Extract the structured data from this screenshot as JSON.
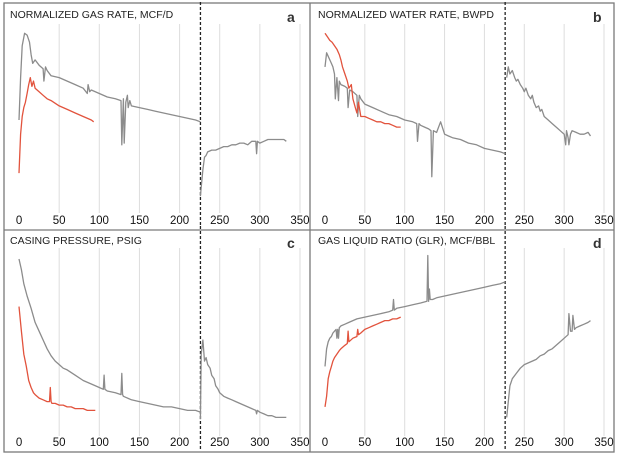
{
  "figure": {
    "panels": [
      {
        "id": "a",
        "title": "NORMALIZED GAS RATE, MCF/D",
        "letter": "a"
      },
      {
        "id": "b",
        "title": "NORMALIZED WATER RATE, BWPD",
        "letter": "b"
      },
      {
        "id": "c",
        "title": "CASING PRESSURE, PSIG",
        "letter": "c"
      },
      {
        "id": "d",
        "title": "GAS LIQUID RATIO (GLR), MCF/BBL",
        "letter": "d"
      }
    ],
    "x_ticks": [
      "0",
      "50",
      "100",
      "150",
      "200",
      "250",
      "300",
      "350"
    ],
    "colors": {
      "gray_series": "#8c8c8c",
      "red_series": "#e2533d",
      "grid": "#dddddd",
      "frame": "#7a7a7a",
      "divider": "#222222"
    }
  },
  "chart_data": [
    {
      "type": "line",
      "panel": "a",
      "title": "NORMALIZED GAS RATE, MCF/D",
      "xlim": [
        -10,
        355
      ],
      "ylim": [
        0,
        1
      ],
      "divider_x": 226,
      "series": [
        {
          "name": "gray",
          "color": "#8c8c8c",
          "x": [
            0,
            2,
            4,
            7,
            10,
            13,
            15,
            17,
            20,
            25,
            30,
            31,
            33,
            35,
            40,
            50,
            60,
            70,
            80,
            85,
            86,
            88,
            90,
            100,
            110,
            120,
            127,
            128,
            130,
            131,
            133,
            135,
            136,
            138,
            140,
            150,
            160,
            170,
            180,
            190,
            200,
            210,
            220,
            226
          ],
          "y": [
            0.48,
            0.72,
            0.9,
            0.97,
            0.96,
            0.92,
            0.85,
            0.8,
            0.82,
            0.79,
            0.77,
            0.7,
            0.78,
            0.76,
            0.73,
            0.72,
            0.7,
            0.68,
            0.66,
            0.63,
            0.68,
            0.64,
            0.65,
            0.63,
            0.61,
            0.6,
            0.59,
            0.34,
            0.6,
            0.35,
            0.58,
            0.62,
            0.55,
            0.59,
            0.56,
            0.55,
            0.54,
            0.53,
            0.52,
            0.51,
            0.5,
            0.49,
            0.48,
            0.47
          ]
        },
        {
          "name": "red",
          "color": "#e2533d",
          "x": [
            0,
            2,
            4,
            6,
            8,
            10,
            12,
            14,
            16,
            18,
            20,
            25,
            30,
            35,
            40,
            50,
            60,
            70,
            80,
            90,
            93
          ],
          "y": [
            0.18,
            0.4,
            0.5,
            0.55,
            0.58,
            0.63,
            0.68,
            0.72,
            0.67,
            0.7,
            0.66,
            0.64,
            0.62,
            0.6,
            0.59,
            0.56,
            0.54,
            0.52,
            0.5,
            0.48,
            0.47
          ]
        },
        {
          "name": "gray_after",
          "color": "#8c8c8c",
          "x": [
            226,
            227,
            229,
            231,
            233,
            235,
            240,
            245,
            250,
            255,
            260,
            265,
            270,
            275,
            280,
            285,
            290,
            295,
            296,
            297,
            300,
            305,
            310,
            315,
            320,
            325,
            330,
            333
          ],
          "y": [
            0.05,
            0.1,
            0.2,
            0.27,
            0.28,
            0.3,
            0.31,
            0.31,
            0.32,
            0.33,
            0.33,
            0.34,
            0.34,
            0.35,
            0.35,
            0.34,
            0.36,
            0.36,
            0.29,
            0.36,
            0.35,
            0.36,
            0.37,
            0.37,
            0.37,
            0.37,
            0.37,
            0.36
          ]
        }
      ]
    },
    {
      "type": "line",
      "panel": "b",
      "title": "NORMALIZED WATER RATE, BWPD",
      "xlim": [
        -10,
        355
      ],
      "ylim": [
        0,
        1
      ],
      "divider_x": 226,
      "series": [
        {
          "name": "gray",
          "color": "#8c8c8c",
          "x": [
            0,
            2,
            4,
            6,
            8,
            10,
            12,
            13,
            15,
            17,
            18,
            20,
            25,
            28,
            29,
            31,
            35,
            40,
            41,
            43,
            45,
            50,
            60,
            70,
            80,
            90,
            100,
            110,
            115,
            116,
            118,
            120,
            125,
            130,
            133,
            134,
            136,
            140,
            145,
            150,
            155,
            160,
            170,
            180,
            190,
            200,
            210,
            220,
            226
          ],
          "y": [
            0.78,
            0.86,
            0.84,
            0.82,
            0.8,
            0.78,
            0.74,
            0.6,
            0.72,
            0.59,
            0.7,
            0.68,
            0.67,
            0.66,
            0.55,
            0.65,
            0.64,
            0.62,
            0.5,
            0.62,
            0.6,
            0.57,
            0.55,
            0.53,
            0.51,
            0.5,
            0.48,
            0.47,
            0.46,
            0.36,
            0.46,
            0.45,
            0.44,
            0.43,
            0.42,
            0.16,
            0.42,
            0.41,
            0.47,
            0.4,
            0.39,
            0.38,
            0.37,
            0.35,
            0.34,
            0.32,
            0.31,
            0.3,
            0.29
          ]
        },
        {
          "name": "red",
          "color": "#e2533d",
          "x": [
            0,
            3,
            6,
            9,
            12,
            15,
            18,
            20,
            22,
            25,
            28,
            30,
            33,
            35,
            38,
            40,
            42,
            45,
            50,
            55,
            60,
            65,
            70,
            75,
            80,
            85,
            90,
            95
          ],
          "y": [
            0.97,
            0.95,
            0.93,
            0.92,
            0.9,
            0.88,
            0.85,
            0.82,
            0.78,
            0.74,
            0.7,
            0.66,
            0.68,
            0.6,
            0.55,
            0.52,
            0.58,
            0.5,
            0.5,
            0.49,
            0.48,
            0.47,
            0.47,
            0.46,
            0.46,
            0.45,
            0.44,
            0.44
          ]
        },
        {
          "name": "gray_after",
          "color": "#8c8c8c",
          "x": [
            228,
            230,
            232,
            235,
            238,
            240,
            242,
            245,
            248,
            250,
            252,
            255,
            258,
            260,
            262,
            265,
            268,
            270,
            272,
            275,
            280,
            285,
            290,
            295,
            300,
            302,
            303,
            305,
            306,
            308,
            310,
            315,
            320,
            325,
            330,
            333
          ],
          "y": [
            0.72,
            0.78,
            0.74,
            0.76,
            0.72,
            0.7,
            0.71,
            0.68,
            0.66,
            0.64,
            0.66,
            0.62,
            0.6,
            0.62,
            0.58,
            0.55,
            0.56,
            0.53,
            0.54,
            0.5,
            0.48,
            0.46,
            0.44,
            0.42,
            0.4,
            0.34,
            0.42,
            0.38,
            0.34,
            0.4,
            0.42,
            0.41,
            0.4,
            0.4,
            0.41,
            0.39
          ]
        }
      ]
    },
    {
      "type": "line",
      "panel": "c",
      "title": "CASING PRESSURE, PSIG",
      "xlim": [
        -10,
        355
      ],
      "ylim": [
        0,
        1
      ],
      "divider_x": 226,
      "series": [
        {
          "name": "gray",
          "color": "#8c8c8c",
          "x": [
            0,
            3,
            6,
            10,
            15,
            20,
            25,
            30,
            35,
            40,
            45,
            50,
            55,
            60,
            70,
            80,
            90,
            100,
            105,
            106,
            107,
            110,
            120,
            127,
            128,
            129,
            130,
            140,
            150,
            160,
            170,
            180,
            190,
            200,
            210,
            220,
            226
          ],
          "y": [
            0.96,
            0.9,
            0.82,
            0.75,
            0.68,
            0.6,
            0.55,
            0.5,
            0.45,
            0.41,
            0.38,
            0.36,
            0.34,
            0.33,
            0.3,
            0.27,
            0.25,
            0.23,
            0.22,
            0.3,
            0.22,
            0.21,
            0.2,
            0.19,
            0.31,
            0.19,
            0.18,
            0.16,
            0.15,
            0.14,
            0.13,
            0.12,
            0.12,
            0.11,
            0.1,
            0.1,
            0.09
          ]
        },
        {
          "name": "red",
          "color": "#e2533d",
          "x": [
            0,
            3,
            6,
            9,
            12,
            15,
            18,
            20,
            25,
            30,
            35,
            38,
            39,
            40,
            41,
            45,
            50,
            55,
            60,
            65,
            70,
            75,
            80,
            85,
            90,
            95
          ],
          "y": [
            0.69,
            0.55,
            0.42,
            0.35,
            0.27,
            0.23,
            0.2,
            0.19,
            0.17,
            0.16,
            0.15,
            0.15,
            0.23,
            0.15,
            0.14,
            0.14,
            0.13,
            0.13,
            0.12,
            0.12,
            0.11,
            0.11,
            0.11,
            0.1,
            0.1,
            0.1
          ]
        },
        {
          "name": "gray_after",
          "color": "#8c8c8c",
          "x": [
            226,
            227,
            229,
            231,
            233,
            235,
            238,
            240,
            243,
            245,
            248,
            250,
            255,
            260,
            265,
            270,
            275,
            280,
            285,
            290,
            295,
            296,
            297,
            300,
            305,
            310,
            315,
            320,
            325,
            330,
            333
          ],
          "y": [
            0.05,
            0.42,
            0.5,
            0.38,
            0.4,
            0.36,
            0.34,
            0.3,
            0.28,
            0.24,
            0.22,
            0.2,
            0.18,
            0.17,
            0.16,
            0.15,
            0.14,
            0.13,
            0.12,
            0.11,
            0.1,
            0.08,
            0.1,
            0.09,
            0.08,
            0.07,
            0.07,
            0.06,
            0.06,
            0.06,
            0.06
          ]
        }
      ]
    },
    {
      "type": "line",
      "panel": "d",
      "title": "GAS LIQUID RATIO (GLR), MCF/BBL",
      "xlim": [
        -10,
        355
      ],
      "ylim": [
        0,
        1
      ],
      "divider_x": 226,
      "series": [
        {
          "name": "gray",
          "color": "#8c8c8c",
          "x": [
            0,
            2,
            4,
            6,
            8,
            10,
            12,
            14,
            15,
            16,
            17,
            18,
            20,
            25,
            30,
            40,
            50,
            60,
            70,
            80,
            85,
            86,
            87,
            90,
            100,
            110,
            120,
            128,
            129,
            130,
            131,
            132,
            135,
            140,
            150,
            160,
            170,
            180,
            190,
            200,
            210,
            220,
            226
          ],
          "y": [
            0.35,
            0.45,
            0.49,
            0.51,
            0.52,
            0.54,
            0.55,
            0.56,
            0.51,
            0.56,
            0.51,
            0.57,
            0.58,
            0.59,
            0.6,
            0.62,
            0.63,
            0.64,
            0.65,
            0.66,
            0.67,
            0.73,
            0.67,
            0.68,
            0.69,
            0.7,
            0.71,
            0.72,
            0.98,
            0.72,
            0.79,
            0.73,
            0.73,
            0.74,
            0.75,
            0.76,
            0.77,
            0.78,
            0.79,
            0.8,
            0.81,
            0.82,
            0.83
          ]
        },
        {
          "name": "red",
          "color": "#e2533d",
          "x": [
            0,
            2,
            4,
            6,
            8,
            10,
            12,
            15,
            18,
            20,
            25,
            28,
            29,
            30,
            35,
            40,
            41,
            42,
            45,
            50,
            55,
            60,
            65,
            70,
            75,
            80,
            85,
            90,
            95
          ],
          "y": [
            0.12,
            0.18,
            0.28,
            0.32,
            0.35,
            0.38,
            0.4,
            0.42,
            0.44,
            0.45,
            0.47,
            0.48,
            0.55,
            0.49,
            0.51,
            0.52,
            0.56,
            0.53,
            0.54,
            0.56,
            0.57,
            0.58,
            0.59,
            0.6,
            0.61,
            0.61,
            0.62,
            0.62,
            0.63
          ]
        },
        {
          "name": "gray_after",
          "color": "#8c8c8c",
          "x": [
            228,
            230,
            232,
            235,
            240,
            245,
            250,
            255,
            260,
            265,
            270,
            275,
            280,
            285,
            290,
            295,
            300,
            305,
            306,
            308,
            310,
            311,
            313,
            315,
            320,
            325,
            330,
            333
          ],
          "y": [
            0.06,
            0.15,
            0.24,
            0.28,
            0.31,
            0.34,
            0.36,
            0.37,
            0.38,
            0.39,
            0.41,
            0.42,
            0.44,
            0.45,
            0.47,
            0.49,
            0.51,
            0.53,
            0.65,
            0.55,
            0.55,
            0.64,
            0.56,
            0.57,
            0.58,
            0.59,
            0.6,
            0.61
          ]
        }
      ]
    }
  ]
}
